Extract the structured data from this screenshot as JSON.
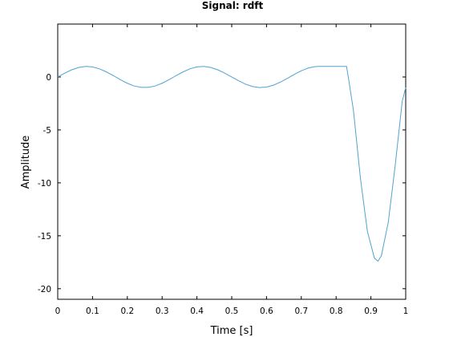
{
  "chart_data": {
    "type": "line",
    "title": "Signal: rdft",
    "xlabel": "Time [s]",
    "ylabel": "Amplitude",
    "xlim": [
      0,
      1
    ],
    "ylim": [
      -21,
      5
    ],
    "x_ticks": [
      0,
      0.1,
      0.2,
      0.3,
      0.4,
      0.5,
      0.6,
      0.7,
      0.8,
      0.9,
      1
    ],
    "x_tick_labels": [
      "0",
      "0.1",
      "0.2",
      "0.3",
      "0.4",
      "0.5",
      "0.6",
      "0.7",
      "0.8",
      "0.9",
      "1"
    ],
    "y_ticks": [
      0,
      -5,
      -10,
      -15,
      -20
    ],
    "y_tick_labels": [
      "0",
      "-5",
      "-10",
      "-15",
      "-20"
    ],
    "grid": false,
    "line_color": "#4fa3d1",
    "series": [
      {
        "x": [
          0,
          0.02,
          0.04,
          0.06,
          0.08,
          0.1,
          0.12,
          0.14,
          0.16,
          0.18,
          0.2,
          0.22,
          0.24,
          0.26,
          0.28,
          0.3,
          0.32,
          0.34,
          0.36,
          0.38,
          0.4,
          0.42,
          0.44,
          0.46,
          0.48,
          0.5,
          0.52,
          0.54,
          0.56,
          0.58,
          0.6,
          0.62,
          0.64,
          0.66,
          0.68,
          0.7,
          0.72,
          0.74,
          0.75,
          0.77,
          0.79,
          0.81,
          0.83,
          0.835,
          0.85,
          0.87,
          0.89,
          0.91,
          0.92,
          0.93,
          0.95,
          0.97,
          0.99,
          1
        ],
        "y": [
          0,
          0.36,
          0.68,
          0.9,
          1.0,
          0.95,
          0.77,
          0.48,
          0.13,
          -0.25,
          -0.59,
          -0.85,
          -0.98,
          -0.98,
          -0.85,
          -0.59,
          -0.25,
          0.13,
          0.48,
          0.77,
          0.95,
          1.0,
          0.9,
          0.68,
          0.36,
          0.0,
          -0.36,
          -0.68,
          -0.9,
          -1.0,
          -0.95,
          -0.77,
          -0.48,
          -0.13,
          0.25,
          0.59,
          0.85,
          0.98,
          1.0,
          1.0,
          1.0,
          1.0,
          1.0,
          0.0,
          -3.2,
          -9.6,
          -14.6,
          -17.1,
          -17.4,
          -16.9,
          -13.7,
          -8.3,
          -2.3,
          -1.0
        ]
      }
    ]
  }
}
